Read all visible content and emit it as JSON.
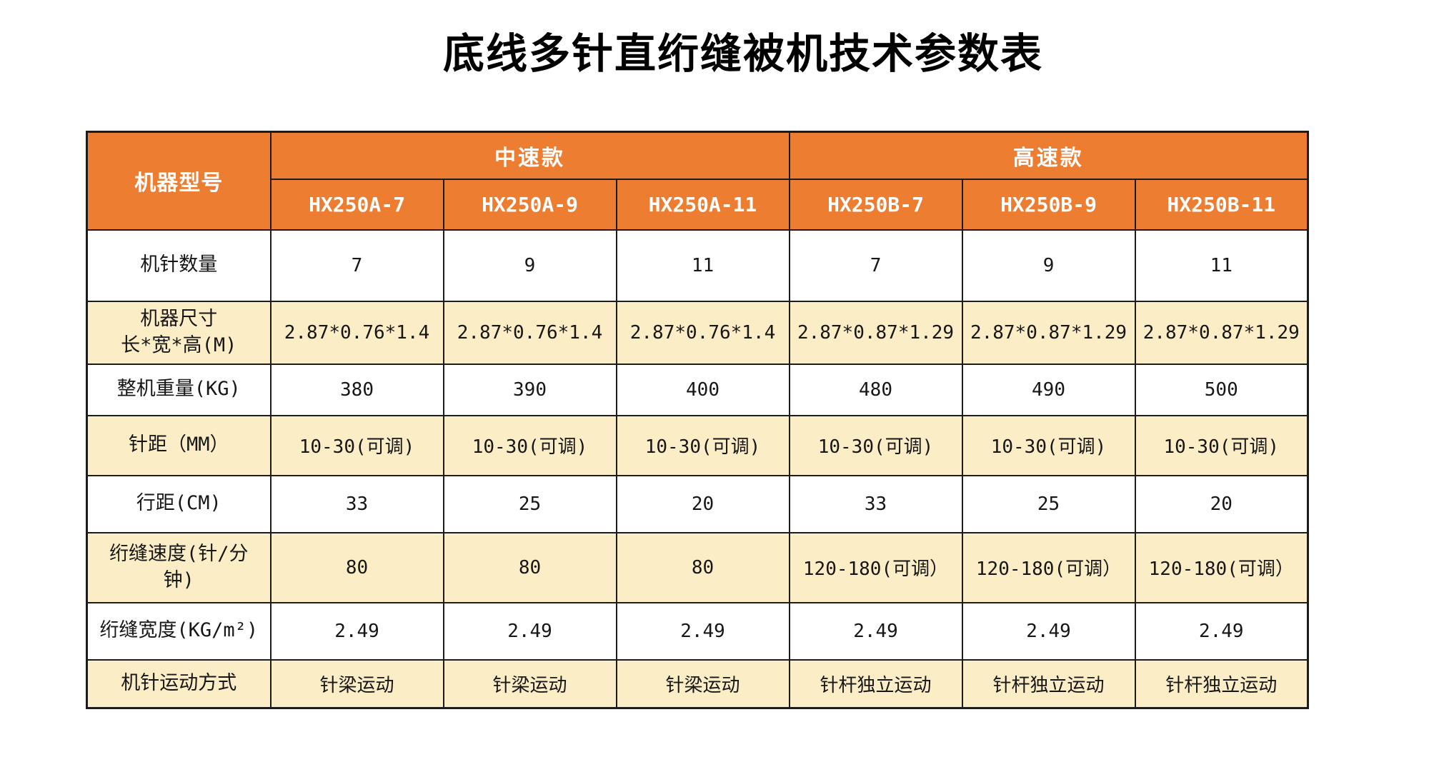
{
  "title": "底线多针直绗缝被机技术参数表",
  "colors": {
    "header_orange": "#ED7D31",
    "shaded_row_cream": "#FBEDC5",
    "plain_row_white": "#FFFFFF",
    "grid_border": "#1C1C1C",
    "header_text": "#FFFFFF",
    "body_text": "#161616"
  },
  "table": {
    "corner_label": "机器型号",
    "groups": [
      {
        "label": "中速款",
        "models": [
          "HX250A-7",
          "HX250A-9",
          "HX250A-11"
        ]
      },
      {
        "label": "高速款",
        "models": [
          "HX250B-7",
          "HX250B-9",
          "HX250B-11"
        ]
      }
    ],
    "rows": [
      {
        "label": "机针数量",
        "values": [
          "7",
          "9",
          "11",
          "7",
          "9",
          "11"
        ]
      },
      {
        "label": "机器尺寸\n长*宽*高(M)",
        "values": [
          "2.87*0.76*1.4",
          "2.87*0.76*1.4",
          "2.87*0.76*1.4",
          "2.87*0.87*1.29",
          "2.87*0.87*1.29",
          "2.87*0.87*1.29"
        ]
      },
      {
        "label": "整机重量(KG)",
        "values": [
          "380",
          "390",
          "400",
          "480",
          "490",
          "500"
        ]
      },
      {
        "label": "针距（MM）",
        "values": [
          "10-30(可调)",
          "10-30(可调)",
          "10-30(可调)",
          "10-30(可调)",
          "10-30(可调)",
          "10-30(可调)"
        ]
      },
      {
        "label": "行距(CM)",
        "values": [
          "33",
          "25",
          "20",
          "33",
          "25",
          "20"
        ]
      },
      {
        "label": "绗缝速度(针/分\n钟)",
        "values": [
          "80",
          "80",
          "80",
          "120-180(可调）",
          "120-180(可调）",
          "120-180(可调）"
        ]
      },
      {
        "label": "绗缝宽度(KG/m²)",
        "values": [
          "2.49",
          "2.49",
          "2.49",
          "2.49",
          "2.49",
          "2.49"
        ]
      },
      {
        "label": "机针运动方式",
        "values": [
          "针梁运动",
          "针梁运动",
          "针梁运动",
          "针杆独立运动",
          "针杆独立运动",
          "针杆独立运动"
        ]
      }
    ]
  }
}
